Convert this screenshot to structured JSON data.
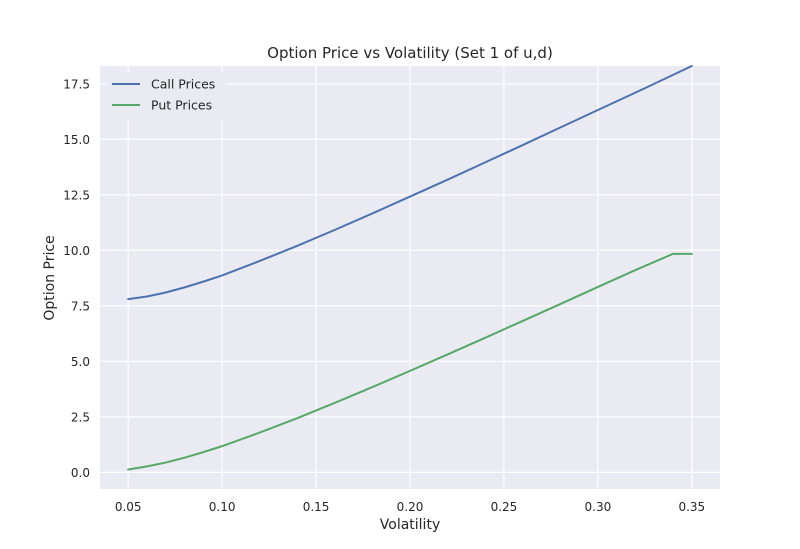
{
  "chart_data": {
    "type": "line",
    "title": "Option Price vs Volatility (Set 1 of u,d)",
    "xlabel": "Volatility",
    "ylabel": "Option Price",
    "xlim": [
      0.035,
      0.365
    ],
    "ylim": [
      -0.75,
      18.3
    ],
    "xticks": [
      0.05,
      0.1,
      0.15,
      0.2,
      0.25,
      0.3,
      0.35
    ],
    "xtick_labels": [
      "0.05",
      "0.10",
      "0.15",
      "0.20",
      "0.25",
      "0.30",
      "0.35"
    ],
    "yticks": [
      0.0,
      2.5,
      5.0,
      7.5,
      10.0,
      12.5,
      15.0,
      17.5
    ],
    "ytick_labels": [
      "0.0",
      "2.5",
      "5.0",
      "7.5",
      "10.0",
      "12.5",
      "15.0",
      "17.5"
    ],
    "grid": true,
    "legend_position": "top-left",
    "x": [
      0.05,
      0.06,
      0.07,
      0.08,
      0.09,
      0.1,
      0.12,
      0.14,
      0.16,
      0.18,
      0.2,
      0.22,
      0.24,
      0.26,
      0.28,
      0.3,
      0.32,
      0.34,
      0.35
    ],
    "series": [
      {
        "name": "Call Prices",
        "color": "#4c72b0",
        "values": [
          7.8,
          7.92,
          8.1,
          8.33,
          8.59,
          8.87,
          9.52,
          10.2,
          10.92,
          11.66,
          12.42,
          13.18,
          13.96,
          14.74,
          15.53,
          16.32,
          17.1,
          17.9,
          18.3
        ]
      },
      {
        "name": "Put Prices",
        "color": "#55a868",
        "values": [
          0.13,
          0.27,
          0.44,
          0.66,
          0.91,
          1.18,
          1.79,
          2.44,
          3.13,
          3.84,
          4.57,
          5.31,
          6.06,
          6.82,
          7.58,
          8.35,
          9.11,
          9.84,
          9.84
        ]
      }
    ]
  }
}
